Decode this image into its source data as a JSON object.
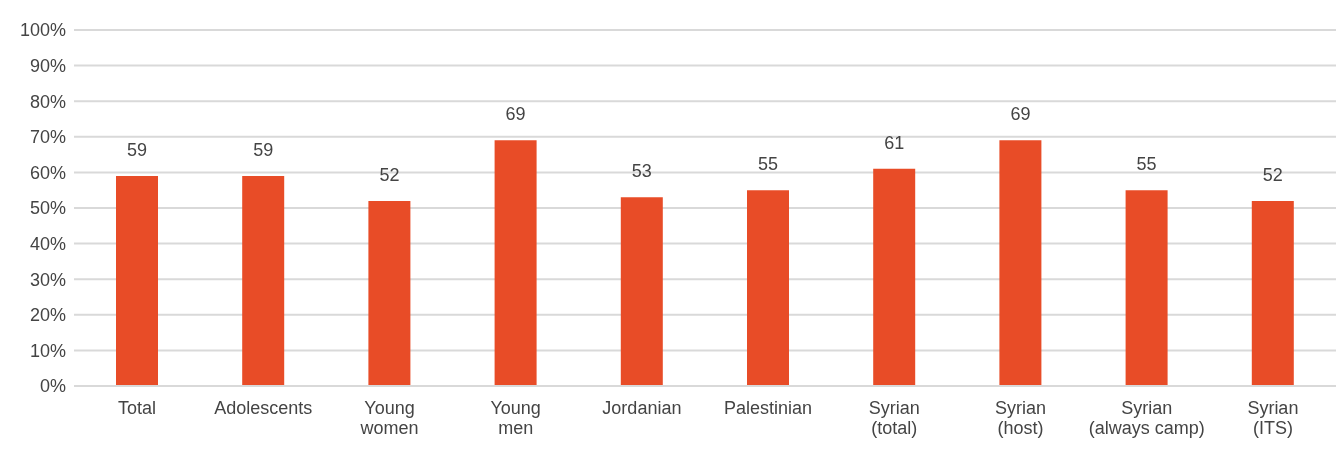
{
  "chart_data": {
    "type": "bar",
    "categories": [
      "Total",
      "Adolescents",
      "Young women",
      "Young men",
      "Jordanian",
      "Palestinian",
      "Syrian (total)",
      "Syrian (host)",
      "Syrian (always camp)",
      "Syrian (ITS)"
    ],
    "values": [
      59,
      59,
      52,
      69,
      53,
      55,
      61,
      69,
      55,
      52
    ],
    "color": "#e84c27",
    "ylim": [
      0,
      100
    ],
    "yticks": [
      {
        "value": 0,
        "label": "0%"
      },
      {
        "value": 10,
        "label": "10%"
      },
      {
        "value": 20,
        "label": "20%"
      },
      {
        "value": 30,
        "label": "30%"
      },
      {
        "value": 40,
        "label": "40%"
      },
      {
        "value": 50,
        "label": "50%"
      },
      {
        "value": 60,
        "label": "60%"
      },
      {
        "value": 70,
        "label": "70%"
      },
      {
        "value": 80,
        "label": "80%"
      },
      {
        "value": 90,
        "label": "90%"
      },
      {
        "value": 100,
        "label": "100%"
      }
    ],
    "grid": "y",
    "data_labels": true
  }
}
